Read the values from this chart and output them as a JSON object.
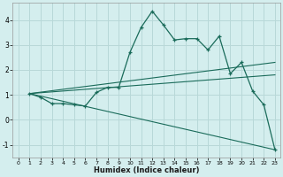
{
  "xlabel": "Humidex (Indice chaleur)",
  "bg_color": "#d4eeee",
  "grid_color": "#b8d8d8",
  "line_color": "#1a6b5a",
  "xlim": [
    -0.5,
    23.5
  ],
  "ylim": [
    -1.5,
    4.7
  ],
  "yticks": [
    -1,
    0,
    1,
    2,
    3,
    4
  ],
  "xticks": [
    0,
    1,
    2,
    3,
    4,
    5,
    6,
    7,
    8,
    9,
    10,
    11,
    12,
    13,
    14,
    15,
    16,
    17,
    18,
    19,
    20,
    21,
    22,
    23
  ],
  "line1_x": [
    1,
    2,
    3,
    4,
    5,
    6,
    7,
    8,
    9,
    10,
    11,
    12,
    13,
    14,
    15,
    16,
    17,
    18,
    19,
    20,
    21,
    22,
    23
  ],
  "line1_y": [
    1.05,
    0.9,
    0.65,
    0.65,
    0.6,
    0.55,
    1.1,
    1.3,
    1.3,
    2.7,
    3.7,
    4.35,
    3.8,
    3.2,
    3.25,
    3.25,
    2.8,
    3.35,
    1.85,
    2.3,
    1.15,
    0.6,
    -1.2
  ],
  "line2_x": [
    1,
    23
  ],
  "line2_y": [
    1.05,
    2.3
  ],
  "line3_x": [
    1,
    23
  ],
  "line3_y": [
    1.05,
    1.8
  ],
  "line4_x": [
    1,
    23
  ],
  "line4_y": [
    1.05,
    -1.2
  ]
}
